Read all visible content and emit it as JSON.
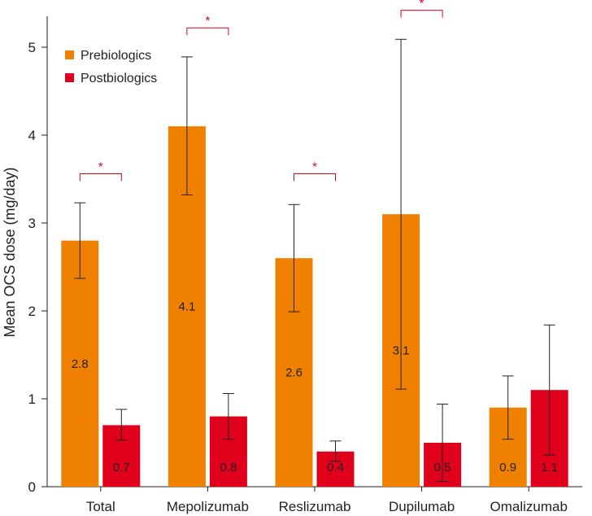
{
  "chart_data": {
    "type": "bar",
    "title": "",
    "xlabel": "",
    "ylabel": "Mean OCS dose (mg/day)",
    "ylim": [
      0,
      5.3
    ],
    "yticks": [
      "0",
      "1",
      "2",
      "3",
      "4",
      "5"
    ],
    "grid": false,
    "legend_position": "top-left",
    "categories": [
      "Total",
      "Mepolizumab",
      "Reslizumab",
      "Dupilumab",
      "Omalizumab"
    ],
    "series": [
      {
        "name": "Prebiologics",
        "color": "#F08000",
        "values": [
          2.8,
          4.1,
          2.6,
          3.1,
          0.9
        ],
        "labels": [
          "2.8",
          "4.1",
          "2.6",
          "3.1",
          "0.9"
        ],
        "err_low": [
          2.37,
          3.32,
          1.99,
          1.11,
          0.54
        ],
        "err_high": [
          3.23,
          4.89,
          3.21,
          5.09,
          1.26
        ]
      },
      {
        "name": "Postbiologics",
        "color": "#E0001B",
        "values": [
          0.7,
          0.8,
          0.4,
          0.5,
          1.1
        ],
        "labels": [
          "0.7",
          "0.8",
          "0.4",
          "0.5",
          "1.1"
        ],
        "err_low": [
          0.53,
          0.54,
          0.29,
          0.06,
          0.36
        ],
        "err_high": [
          0.88,
          1.06,
          0.52,
          0.94,
          1.84
        ]
      }
    ],
    "significance": [
      {
        "category": "Total",
        "marker": "*",
        "bracket_level": 3.56
      },
      {
        "category": "Mepolizumab",
        "marker": "*",
        "bracket_level": 5.22
      },
      {
        "category": "Reslizumab",
        "marker": "*",
        "bracket_level": 3.56
      },
      {
        "category": "Dupilumab",
        "marker": "*",
        "bracket_level": 5.42
      }
    ],
    "significance_color": "#E0001B"
  }
}
